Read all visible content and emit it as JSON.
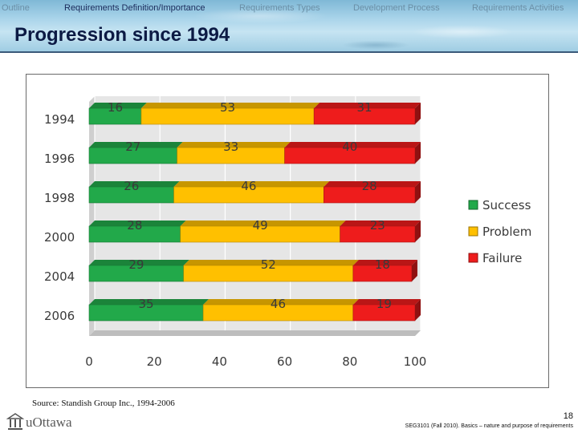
{
  "nav": {
    "items": [
      {
        "label": "Outline",
        "active": false
      },
      {
        "label": "Requirements Definition/Importance",
        "active": true
      },
      {
        "label": "Requirements Types",
        "active": false
      },
      {
        "label": "Development Process",
        "active": false
      },
      {
        "label": "Requirements Activities",
        "active": false
      }
    ]
  },
  "page_title": "Progression since 1994",
  "source_note": "Source: Standish Group Inc., 1994-2006",
  "footer": {
    "logo_text": "uOttawa",
    "page_number": "18",
    "course_text": "SEG3101 (Fall 2010).   Basics – nature and purpose of requirements"
  },
  "colors": {
    "success": "#22a94a",
    "problem": "#ffc000",
    "failure": "#ee1c1c"
  },
  "chart_data": {
    "type": "bar",
    "orientation": "horizontal",
    "stacked": true,
    "categories": [
      "1994",
      "1996",
      "1998",
      "2000",
      "2004",
      "2006"
    ],
    "series": [
      {
        "name": "Success",
        "values": [
          16,
          27,
          26,
          28,
          29,
          35
        ]
      },
      {
        "name": "Problem",
        "values": [
          53,
          33,
          46,
          49,
          52,
          46
        ]
      },
      {
        "name": "Failure",
        "values": [
          31,
          40,
          28,
          23,
          18,
          19
        ]
      }
    ],
    "xlim": [
      0,
      100
    ],
    "x_ticks": [
      "0",
      "20",
      "40",
      "60",
      "80",
      "100"
    ],
    "legend_position": "right",
    "grid": true,
    "style": "3d"
  }
}
